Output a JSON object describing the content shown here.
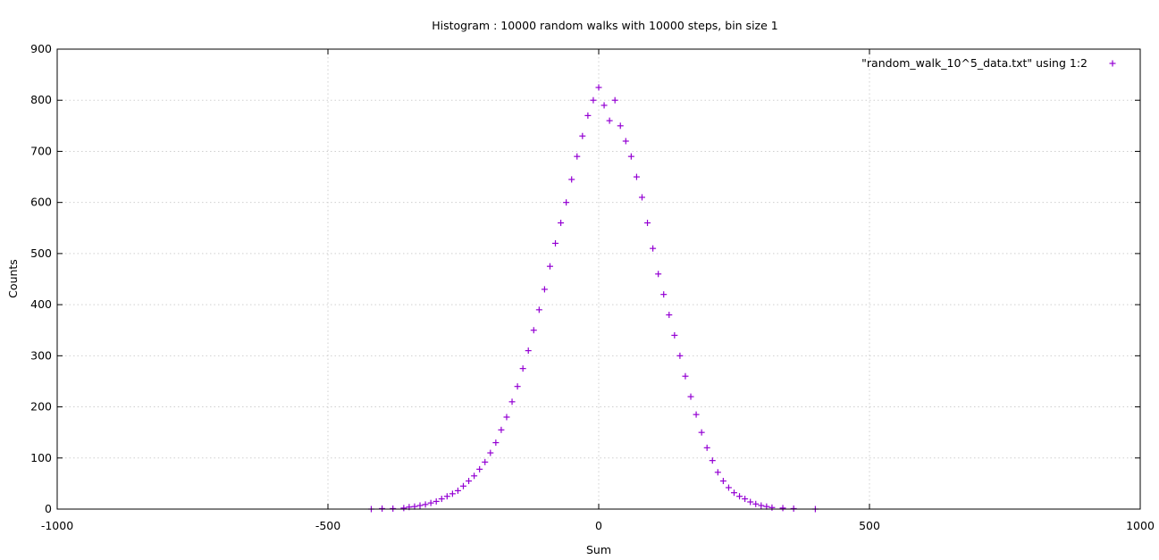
{
  "chart_data": {
    "type": "scatter",
    "title": "Histogram : 10000 random walks with 10000 steps, bin size 1",
    "xlabel": "Sum",
    "ylabel": "Counts",
    "xlim": [
      -1000,
      1000
    ],
    "ylim": [
      0,
      900
    ],
    "xticks": [
      -1000,
      -500,
      0,
      500,
      1000
    ],
    "yticks": [
      0,
      100,
      200,
      300,
      400,
      500,
      600,
      700,
      800,
      900
    ],
    "grid": true,
    "legend_position": "top-right",
    "series": [
      {
        "name": "\"random_walk_10^5_data.txt\" using 1:2",
        "marker": "plus",
        "color": "#9400d3",
        "points": [
          [
            -420,
            0
          ],
          [
            -400,
            1
          ],
          [
            -380,
            1
          ],
          [
            -360,
            2
          ],
          [
            -350,
            4
          ],
          [
            -340,
            5
          ],
          [
            -330,
            7
          ],
          [
            -320,
            9
          ],
          [
            -310,
            12
          ],
          [
            -300,
            15
          ],
          [
            -290,
            20
          ],
          [
            -280,
            25
          ],
          [
            -270,
            30
          ],
          [
            -260,
            36
          ],
          [
            -250,
            45
          ],
          [
            -240,
            55
          ],
          [
            -230,
            65
          ],
          [
            -220,
            78
          ],
          [
            -210,
            92
          ],
          [
            -200,
            110
          ],
          [
            -190,
            130
          ],
          [
            -180,
            155
          ],
          [
            -170,
            180
          ],
          [
            -160,
            210
          ],
          [
            -150,
            240
          ],
          [
            -140,
            275
          ],
          [
            -130,
            310
          ],
          [
            -120,
            350
          ],
          [
            -110,
            390
          ],
          [
            -100,
            430
          ],
          [
            -90,
            475
          ],
          [
            -80,
            520
          ],
          [
            -70,
            560
          ],
          [
            -60,
            600
          ],
          [
            -50,
            645
          ],
          [
            -40,
            690
          ],
          [
            -30,
            730
          ],
          [
            -20,
            770
          ],
          [
            -10,
            800
          ],
          [
            0,
            825
          ],
          [
            10,
            790
          ],
          [
            20,
            760
          ],
          [
            30,
            800
          ],
          [
            40,
            750
          ],
          [
            50,
            720
          ],
          [
            60,
            690
          ],
          [
            70,
            650
          ],
          [
            80,
            610
          ],
          [
            90,
            560
          ],
          [
            100,
            510
          ],
          [
            110,
            460
          ],
          [
            120,
            420
          ],
          [
            130,
            380
          ],
          [
            140,
            340
          ],
          [
            150,
            300
          ],
          [
            160,
            260
          ],
          [
            170,
            220
          ],
          [
            180,
            185
          ],
          [
            190,
            150
          ],
          [
            200,
            120
          ],
          [
            210,
            95
          ],
          [
            220,
            72
          ],
          [
            230,
            55
          ],
          [
            240,
            42
          ],
          [
            250,
            32
          ],
          [
            260,
            25
          ],
          [
            270,
            20
          ],
          [
            280,
            14
          ],
          [
            290,
            10
          ],
          [
            300,
            7
          ],
          [
            310,
            5
          ],
          [
            320,
            3
          ],
          [
            340,
            2
          ],
          [
            360,
            1
          ],
          [
            400,
            0
          ]
        ]
      }
    ]
  }
}
